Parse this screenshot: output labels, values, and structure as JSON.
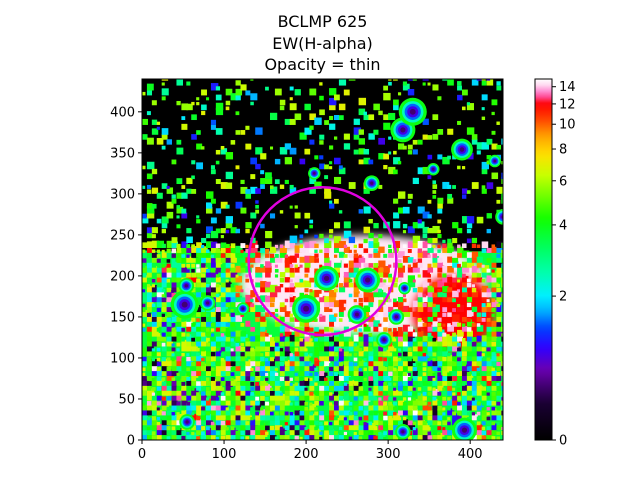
{
  "chart_data": {
    "type": "heatmap",
    "title_lines": [
      "BCLMP 625",
      "EW(H-alpha)",
      "Opacity = thin"
    ],
    "xlabel": "",
    "ylabel": "",
    "xlim": [
      0,
      440
    ],
    "ylim": [
      0,
      440
    ],
    "x_ticks": [
      0,
      100,
      200,
      300,
      400
    ],
    "y_ticks": [
      0,
      50,
      100,
      150,
      200,
      250,
      300,
      350,
      400
    ],
    "colorbar": {
      "colormap": "gist_ncar-like",
      "range": [
        0,
        15
      ],
      "ticks": [
        0,
        2,
        4,
        6,
        8,
        10,
        12,
        14
      ],
      "ticklabels": [
        "0",
        "2",
        "4",
        "6",
        "8",
        "10",
        "12",
        "14"
      ],
      "stops": [
        {
          "v": 0,
          "color": "#000000"
        },
        {
          "v": 0.4,
          "color": "#1a0033"
        },
        {
          "v": 0.8,
          "color": "#6a00b0"
        },
        {
          "v": 1.1,
          "color": "#3000ff"
        },
        {
          "v": 1.4,
          "color": "#0040ff"
        },
        {
          "v": 1.7,
          "color": "#00b0ff"
        },
        {
          "v": 2.0,
          "color": "#00f0ff"
        },
        {
          "v": 2.5,
          "color": "#00ffb0"
        },
        {
          "v": 3.2,
          "color": "#00ff60"
        },
        {
          "v": 4.2,
          "color": "#10ff00"
        },
        {
          "v": 5.2,
          "color": "#70ff00"
        },
        {
          "v": 6.3,
          "color": "#c8ff00"
        },
        {
          "v": 7.6,
          "color": "#ffe000"
        },
        {
          "v": 9.0,
          "color": "#ffa000"
        },
        {
          "v": 10.5,
          "color": "#ff4000"
        },
        {
          "v": 12.0,
          "color": "#ff0000"
        },
        {
          "v": 13.0,
          "color": "#ff60c0"
        },
        {
          "v": 14.2,
          "color": "#ffd8f0"
        },
        {
          "v": 15,
          "color": "#ffffff"
        }
      ]
    },
    "regions": [
      {
        "kind": "low_background",
        "x": [
          0,
          440
        ],
        "y": [
          230,
          440
        ],
        "level": 0
      },
      {
        "kind": "bright_diffuse",
        "x": [
          120,
          420
        ],
        "y": [
          130,
          250
        ],
        "level": 14.5
      },
      {
        "kind": "bright_diffuse",
        "x": [
          330,
          430
        ],
        "y": [
          110,
          200
        ],
        "level": 12
      },
      {
        "kind": "mottled_low_mid",
        "x": [
          0,
          440
        ],
        "y": [
          0,
          130
        ],
        "level": 4
      }
    ],
    "compact_sources": [
      {
        "x": 52,
        "y": 165,
        "r": 9
      },
      {
        "x": 54,
        "y": 188,
        "r": 5
      },
      {
        "x": 80,
        "y": 167,
        "r": 5
      },
      {
        "x": 200,
        "y": 160,
        "r": 9
      },
      {
        "x": 225,
        "y": 197,
        "r": 8
      },
      {
        "x": 275,
        "y": 195,
        "r": 8
      },
      {
        "x": 262,
        "y": 153,
        "r": 6
      },
      {
        "x": 295,
        "y": 122,
        "r": 5
      },
      {
        "x": 310,
        "y": 150,
        "r": 5
      },
      {
        "x": 320,
        "y": 185,
        "r": 4
      },
      {
        "x": 210,
        "y": 325,
        "r": 4
      },
      {
        "x": 280,
        "y": 313,
        "r": 5
      },
      {
        "x": 318,
        "y": 378,
        "r": 8
      },
      {
        "x": 330,
        "y": 400,
        "r": 9
      },
      {
        "x": 390,
        "y": 354,
        "r": 7
      },
      {
        "x": 393,
        "y": 12,
        "r": 8
      },
      {
        "x": 55,
        "y": 22,
        "r": 5
      },
      {
        "x": 318,
        "y": 10,
        "r": 5
      },
      {
        "x": 440,
        "y": 272,
        "r": 5
      },
      {
        "x": 123,
        "y": 160,
        "r": 4
      },
      {
        "x": 355,
        "y": 330,
        "r": 4
      },
      {
        "x": 430,
        "y": 340,
        "r": 4
      }
    ],
    "annotations": [
      {
        "type": "circle",
        "center_x": 220,
        "center_y": 218,
        "radius": 90,
        "color": "#e000e0"
      }
    ],
    "grid": false,
    "legend": "colorbar right"
  }
}
